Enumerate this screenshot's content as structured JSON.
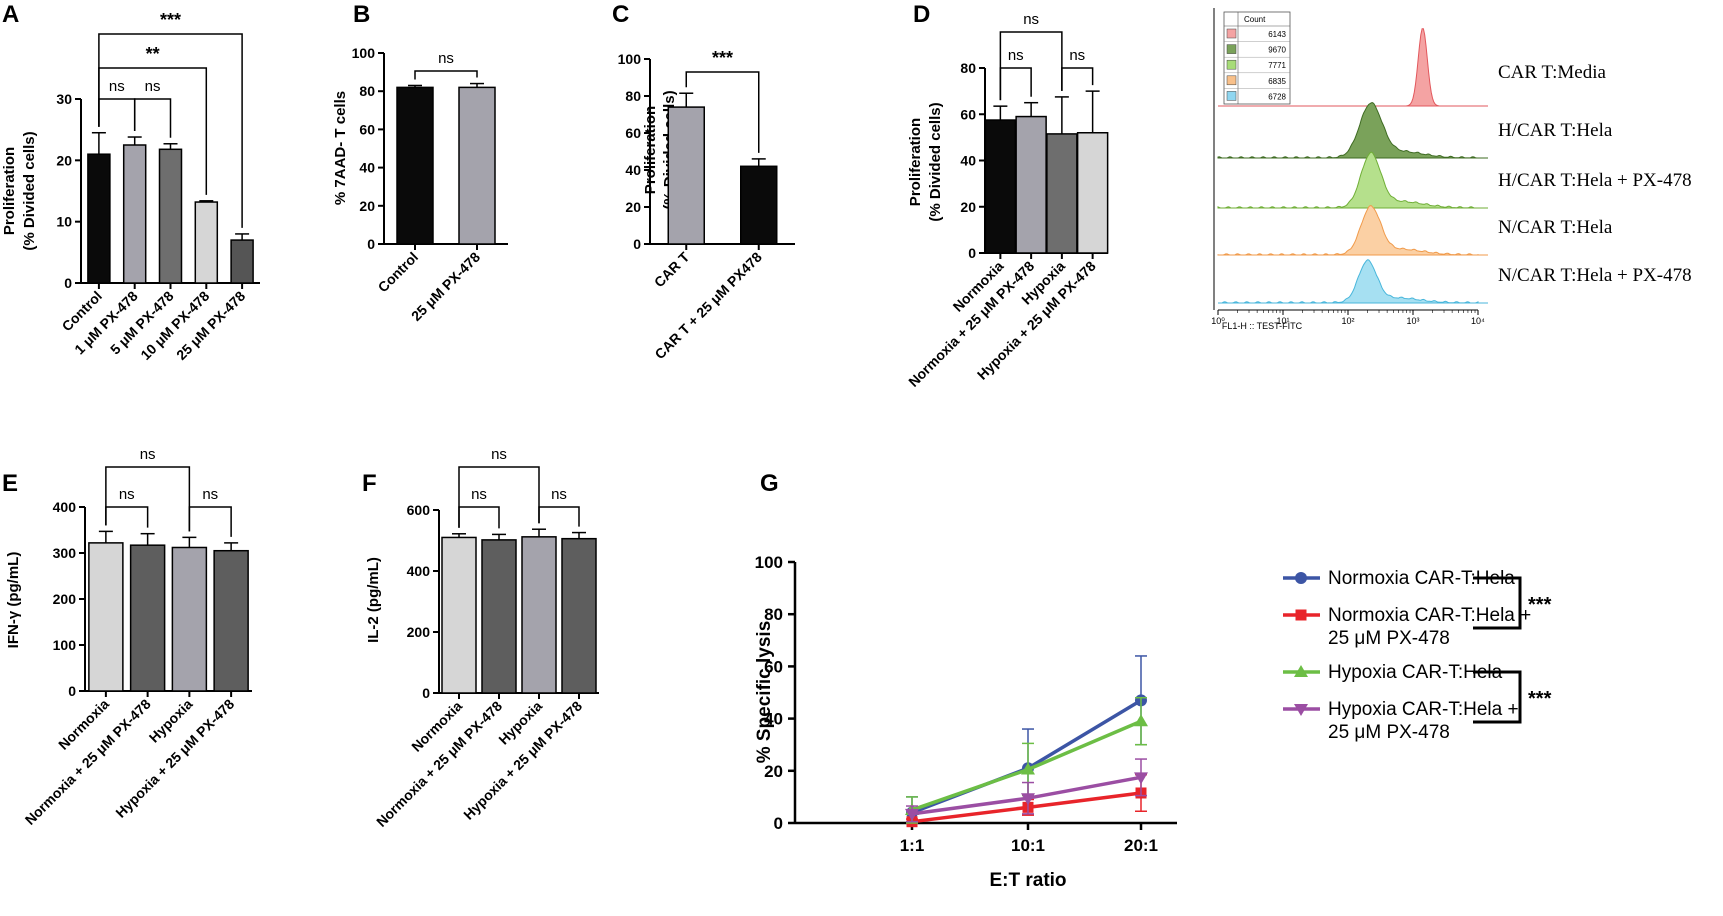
{
  "panels": {
    "A": "A",
    "B": "B",
    "C": "C",
    "D": "D",
    "E": "E",
    "F": "F",
    "G": "G"
  },
  "histogram": {
    "count_header": "Count",
    "table": [
      {
        "value": "6143",
        "color": "#f4a3a3"
      },
      {
        "value": "9670",
        "color": "#7aa25a"
      },
      {
        "value": "7771",
        "color": "#a7dc78"
      },
      {
        "value": "6835",
        "color": "#f8c08a"
      },
      {
        "value": "6728",
        "color": "#8fd6f0"
      }
    ],
    "x_ticks": [
      "10⁰",
      "10¹",
      "10²",
      "10³",
      "10⁴"
    ],
    "xlabel": "FL1-H :: TEST-FITC",
    "rows": [
      {
        "label": "CAR T:Media",
        "fill": "#f4a3a3",
        "stroke": "#e2575c",
        "peak_log": 3.15,
        "width": 0.07
      },
      {
        "label": "H/CAR T:Hela",
        "fill": "#7aa25a",
        "stroke": "#3e6b22",
        "peak_log": 2.35,
        "width": 0.17
      },
      {
        "label": "H/CAR T:Hela + PX-478",
        "fill": "#b5e08c",
        "stroke": "#6fae36",
        "peak_log": 2.35,
        "width": 0.15
      },
      {
        "label": "N/CAR T:Hela",
        "fill": "#fbd0a4",
        "stroke": "#f09a4a",
        "peak_log": 2.35,
        "width": 0.15
      },
      {
        "label": "N/CAR T:Hela + PX-478",
        "fill": "#a6e0f2",
        "stroke": "#48b6db",
        "peak_log": 2.3,
        "width": 0.14
      }
    ]
  },
  "chart_data": [
    {
      "id": "A",
      "type": "bar",
      "ylabel": [
        "Proliferation",
        "(% Divided cells)"
      ],
      "ylim": [
        0,
        30
      ],
      "yticks": [
        0,
        10,
        20,
        30
      ],
      "categories": [
        "Control",
        "1 μM PX-478",
        "5 μM PX-478",
        "10 μM PX-478",
        "25 μM PX-478"
      ],
      "values": [
        21,
        22.5,
        21.8,
        13.2,
        7
      ],
      "errors": [
        3.5,
        1.3,
        0.9,
        0.2,
        1.0
      ],
      "colors": [
        "#0a0a0a",
        "#a4a3ac",
        "#6e6e6e",
        "#d6d6d6",
        "#555555"
      ],
      "brackets": [
        {
          "from": 0,
          "to": 1,
          "label": "ns",
          "style": "ns"
        },
        {
          "from": 1,
          "to": 2,
          "label": "ns",
          "style": "ns"
        },
        {
          "from": 0,
          "to": 3,
          "label": "**",
          "style": "star"
        },
        {
          "from": 0,
          "to": 4,
          "label": "***",
          "style": "star"
        }
      ]
    },
    {
      "id": "B",
      "type": "bar",
      "ylabel": [
        "% 7AAD- T cells"
      ],
      "ylim": [
        0,
        100
      ],
      "yticks": [
        0,
        20,
        40,
        60,
        80,
        100
      ],
      "categories": [
        "Control",
        "25 μM PX-478"
      ],
      "values": [
        82,
        82
      ],
      "errors": [
        1.0,
        2.0
      ],
      "colors": [
        "#0a0a0a",
        "#a4a3ac"
      ],
      "brackets": [
        {
          "from": 0,
          "to": 1,
          "label": "ns",
          "style": "ns"
        }
      ]
    },
    {
      "id": "C",
      "type": "bar",
      "ylabel": [
        "Proliferation",
        "(% Divided cells)"
      ],
      "ylim": [
        0,
        100
      ],
      "yticks": [
        0,
        20,
        40,
        60,
        80,
        100
      ],
      "categories": [
        "CAR T",
        "CAR T + 25 μM PX478"
      ],
      "values": [
        74,
        42
      ],
      "errors": [
        7.5,
        4.0
      ],
      "colors": [
        "#a4a3ac",
        "#0a0a0a"
      ],
      "brackets": [
        {
          "from": 0,
          "to": 1,
          "label": "***",
          "style": "star"
        }
      ]
    },
    {
      "id": "D",
      "type": "bar",
      "ylabel": [
        "Proliferation",
        "(% Divided cells)"
      ],
      "ylim": [
        0,
        80
      ],
      "yticks": [
        0,
        20,
        40,
        60,
        80
      ],
      "categories": [
        "Normoxia",
        "Normoxia + 25 μM PX-478",
        "Hypoxia",
        "Hypoxia + 25 μM PX-478"
      ],
      "values": [
        57.5,
        59,
        51.5,
        52
      ],
      "errors": [
        6,
        6,
        16,
        18
      ],
      "colors": [
        "#0a0a0a",
        "#a4a3ac",
        "#6e6e6e",
        "#d6d6d6"
      ],
      "brackets": [
        {
          "from": 0,
          "to": 1,
          "label": "ns",
          "style": "ns"
        },
        {
          "from": 2,
          "to": 3,
          "label": "ns",
          "style": "ns"
        },
        {
          "from": 0,
          "to": 2,
          "label": "ns",
          "style": "ns"
        }
      ]
    },
    {
      "id": "E",
      "type": "bar",
      "ylabel": [
        "IFN-γ (pg/mL)"
      ],
      "ylim": [
        0,
        400
      ],
      "yticks": [
        0,
        100,
        200,
        300,
        400
      ],
      "categories": [
        "Normoxia",
        "Normoxia + 25 μM PX-478",
        "Hypoxia",
        "Hypoxia + 25 μM PX-478"
      ],
      "values": [
        322,
        317,
        312,
        305
      ],
      "errors": [
        25,
        25,
        22,
        17
      ],
      "colors": [
        "#d6d6d6",
        "#5e5e5e",
        "#a4a3ac",
        "#5e5e5e"
      ],
      "brackets": [
        {
          "from": 0,
          "to": 1,
          "label": "ns",
          "style": "ns"
        },
        {
          "from": 2,
          "to": 3,
          "label": "ns",
          "style": "ns"
        },
        {
          "from": 0,
          "to": 2,
          "label": "ns",
          "style": "ns"
        }
      ]
    },
    {
      "id": "F",
      "type": "bar",
      "ylabel": [
        "IL-2 (pg/mL)"
      ],
      "ylim": [
        0,
        600
      ],
      "yticks": [
        0,
        200,
        400,
        600
      ],
      "categories": [
        "Normoxia",
        "Normoxia + 25 μM PX-478",
        "Hypoxia",
        "Hypoxia + 25 μM PX-478"
      ],
      "values": [
        510,
        502,
        512,
        506
      ],
      "errors": [
        12,
        18,
        25,
        20
      ],
      "colors": [
        "#d6d6d6",
        "#5e5e5e",
        "#a4a3ac",
        "#5e5e5e"
      ],
      "brackets": [
        {
          "from": 0,
          "to": 1,
          "label": "ns",
          "style": "ns"
        },
        {
          "from": 2,
          "to": 3,
          "label": "ns",
          "style": "ns"
        },
        {
          "from": 0,
          "to": 2,
          "label": "ns",
          "style": "ns"
        }
      ]
    },
    {
      "id": "G",
      "type": "line",
      "xlabel": "E:T ratio",
      "ylabel": "% Specific lysis",
      "categories": [
        "1:1",
        "10:1",
        "20:1"
      ],
      "ylim": [
        0,
        100
      ],
      "yticks": [
        0,
        20,
        40,
        60,
        80,
        100
      ],
      "series": [
        {
          "name": "Normoxia CAR-T:Hela",
          "color": "#3c55a5",
          "marker": "circle",
          "values": [
            4,
            21,
            47
          ],
          "errors": [
            6,
            15,
            17
          ]
        },
        {
          "name": "Normoxia CAR-T:Hela + 25 μM PX-478",
          "color": "#e8242a",
          "marker": "square",
          "values": [
            0.5,
            6,
            11.5
          ],
          "errors": [
            1,
            3,
            7
          ]
        },
        {
          "name": "Hypoxia CAR-T:Hela",
          "color": "#6cbe45",
          "marker": "triangle-up",
          "values": [
            5,
            20.5,
            39
          ],
          "errors": [
            5,
            10,
            9
          ]
        },
        {
          "name": "Hypoxia CAR-T:Hela + 25 μM PX-478",
          "color": "#9b4ea3",
          "marker": "triangle-down",
          "values": [
            3.5,
            9.5,
            17.5
          ],
          "errors": [
            3,
            6,
            7
          ]
        }
      ],
      "legend_lines": [
        [
          "Normoxia CAR-T:Hela"
        ],
        [
          "Normoxia CAR-T:Hela +",
          "25 μM PX-478"
        ],
        [
          "Hypoxia CAR-T:Hela"
        ],
        [
          "Hypoxia CAR-T:Hela +",
          "25 μM PX-478"
        ]
      ],
      "legend_sig": [
        "***",
        "***"
      ]
    }
  ]
}
